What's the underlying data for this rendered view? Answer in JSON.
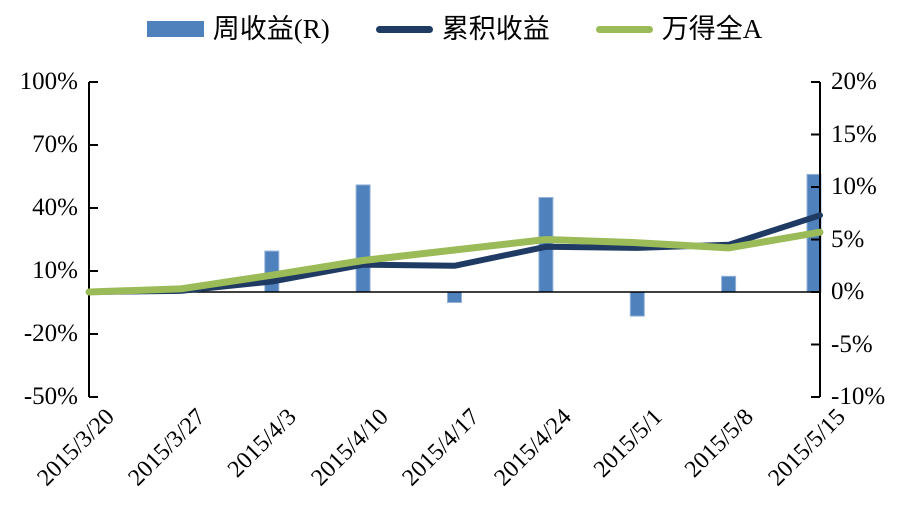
{
  "legend": {
    "items": [
      {
        "label": "周收益(R)",
        "swatch": "bar",
        "color": "#4F81BD"
      },
      {
        "label": "累积收益",
        "swatch": "line",
        "color": "#1F3B63"
      },
      {
        "label": "万得全A",
        "swatch": "line",
        "color": "#9BBB59"
      }
    ]
  },
  "chart_data": {
    "type": "combo-bar-line",
    "title": "",
    "categories": [
      "2015/3/20",
      "2015/3/27",
      "2015/4/3",
      "2015/4/10",
      "2015/4/17",
      "2015/4/24",
      "2015/5/1",
      "2015/5/8",
      "2015/5/15"
    ],
    "series": [
      {
        "name": "周收益(R)",
        "type": "bar",
        "axis": "right",
        "color": "#4F81BD",
        "border_color": "#95B3D7",
        "values": [
          0,
          0,
          3.9,
          10.2,
          -1.0,
          9.0,
          -2.3,
          1.5,
          11.2
        ]
      },
      {
        "name": "累积收益",
        "type": "line",
        "axis": "left",
        "color": "#1F3B63",
        "values": [
          0,
          0.5,
          5,
          13,
          12.5,
          21.5,
          21,
          22.5,
          36.5
        ]
      },
      {
        "name": "万得全A",
        "type": "line",
        "axis": "left",
        "color": "#9BBB59",
        "values": [
          0,
          1.5,
          8,
          15,
          20,
          25,
          23.5,
          21,
          28.5
        ]
      }
    ],
    "left_axis": {
      "ticks": [
        "100%",
        "70%",
        "40%",
        "10%",
        "-20%",
        "-50%"
      ],
      "min": -50,
      "max": 100,
      "unit": "%"
    },
    "right_axis": {
      "ticks": [
        "20%",
        "15%",
        "10%",
        "5%",
        "0%",
        "-5%",
        "-10%"
      ],
      "min": -10,
      "max": 20,
      "unit": "%"
    },
    "grid": false,
    "legend_position": "top",
    "axis_color": "#000000"
  }
}
